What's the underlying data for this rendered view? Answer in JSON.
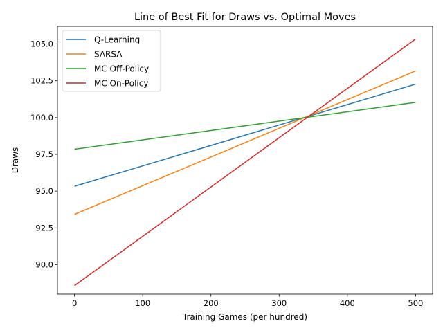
{
  "chart_data": {
    "type": "line",
    "title": "Line of Best Fit for Draws vs. Optimal Moves",
    "xlabel": "Training Games (per hundred)",
    "ylabel": "Draws",
    "xlim": [
      -25,
      525
    ],
    "ylim": [
      88.0,
      106.2
    ],
    "x_ticks": [
      0,
      100,
      200,
      300,
      400,
      500
    ],
    "x_tick_labels": [
      "0",
      "100",
      "200",
      "300",
      "400",
      "500"
    ],
    "y_ticks": [
      90.0,
      92.5,
      95.0,
      97.5,
      100.0,
      102.5,
      105.0
    ],
    "y_tick_labels": [
      "90.0",
      "92.5",
      "95.0",
      "97.5",
      "100.0",
      "102.5",
      "105.0"
    ],
    "grid": false,
    "legend_position": "top-left",
    "series": [
      {
        "name": "Q-Learning",
        "color": "#1f77b4",
        "x": [
          0,
          500
        ],
        "y": [
          95.33,
          102.27
        ]
      },
      {
        "name": "SARSA",
        "color": "#ff7f0e",
        "x": [
          0,
          500
        ],
        "y": [
          93.42,
          103.17
        ]
      },
      {
        "name": "MC Off-Policy",
        "color": "#2ca02c",
        "x": [
          0,
          500
        ],
        "y": [
          97.85,
          101.03
        ]
      },
      {
        "name": "MC On-Policy",
        "color": "#d62728",
        "x": [
          0,
          500
        ],
        "y": [
          88.58,
          105.33
        ]
      }
    ]
  }
}
